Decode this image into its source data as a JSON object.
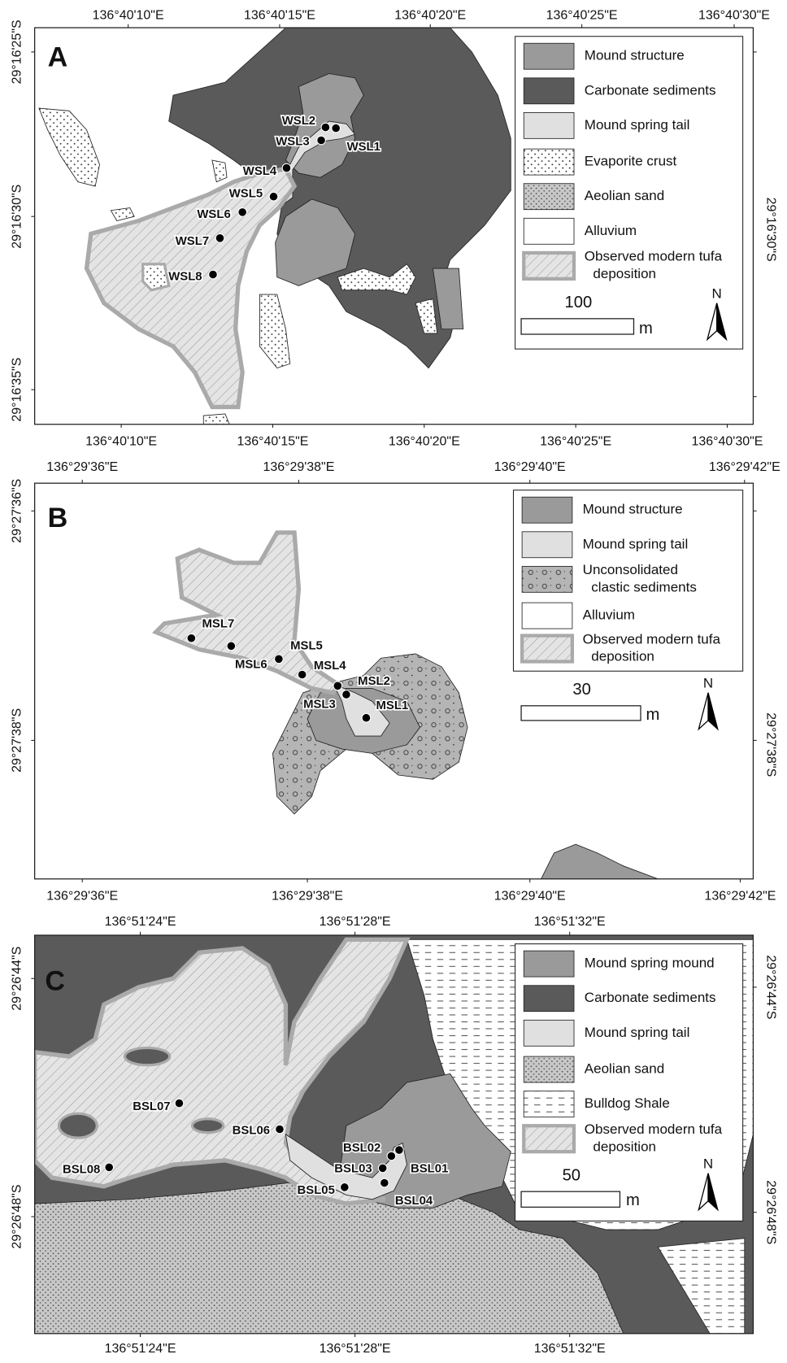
{
  "panels": [
    {
      "label": "A",
      "top_axis": [
        "136°40'10\"E",
        "136°40'15\"E",
        "136°40'20\"E",
        "136°40'25\"E",
        "136°40'30\"E"
      ],
      "bottom_axis": [
        "136°40'10\"E",
        "136°40'15\"E",
        "136°40'20\"E",
        "136°40'25\"E",
        "136°40'30\"E"
      ],
      "left_axis": [
        "29°16'25\"S",
        "29°16'30\"S",
        "29°16'35\"S"
      ],
      "right_axis": [
        "29°16'30\"S"
      ],
      "legend": [
        "Mound structure",
        "Carbonate sediments",
        "Mound spring tail",
        "Evaporite crust",
        "Aeolian sand",
        "Alluvium",
        [
          "Observed modern tufa",
          "deposition"
        ]
      ],
      "scale_bar": {
        "value": "100",
        "unit": "m"
      },
      "north": "N",
      "sites": [
        "WSL1",
        "WSL2",
        "WSL3",
        "WSL4",
        "WSL5",
        "WSL6",
        "WSL7",
        "WSL8"
      ]
    },
    {
      "label": "B",
      "top_axis": [
        "136°29'36\"E",
        "136°29'38\"E",
        "136°29'40\"E",
        "136°29'42\"E"
      ],
      "bottom_axis": [
        "136°29'36\"E",
        "136°29'38\"E",
        "136°29'40\"E",
        "136°29'42\"E"
      ],
      "left_axis": [
        "29°27'36\"S",
        "29°27'38\"S"
      ],
      "right_axis": [
        "29°27'38\"S"
      ],
      "legend": [
        "Mound structure",
        "Mound spring tail",
        [
          "Unconsolidated",
          "clastic sediments"
        ],
        "Alluvium",
        [
          "Observed modern tufa",
          "deposition"
        ]
      ],
      "scale_bar": {
        "value": "30",
        "unit": "m"
      },
      "north": "N",
      "sites": [
        "MSL1",
        "MSL2",
        "MSL3",
        "MSL4",
        "MSL5",
        "MSL6",
        "MSL7"
      ]
    },
    {
      "label": "C",
      "top_axis": [
        "136°51'24\"E",
        "136°51'28\"E",
        "136°51'32\"E"
      ],
      "bottom_axis": [
        "136°51'24\"E",
        "136°51'28\"E",
        "136°51'32\"E"
      ],
      "left_axis": [
        "29°26'44\"S",
        "29°26'48\"S"
      ],
      "right_axis": [
        "29°26'44\"S",
        "29°26'48\"S"
      ],
      "legend": [
        "Mound spring mound",
        "Carbonate sediments",
        "Mound spring tail",
        "Aeolian sand",
        "Bulldog Shale",
        [
          "Observed modern tufa",
          "deposition"
        ]
      ],
      "scale_bar": {
        "value": "50",
        "unit": "m"
      },
      "north": "N",
      "sites": [
        "BSL01",
        "BSL02",
        "BSL03",
        "BSL04",
        "BSL05",
        "BSL06",
        "BSL07",
        "BSL08"
      ]
    }
  ]
}
